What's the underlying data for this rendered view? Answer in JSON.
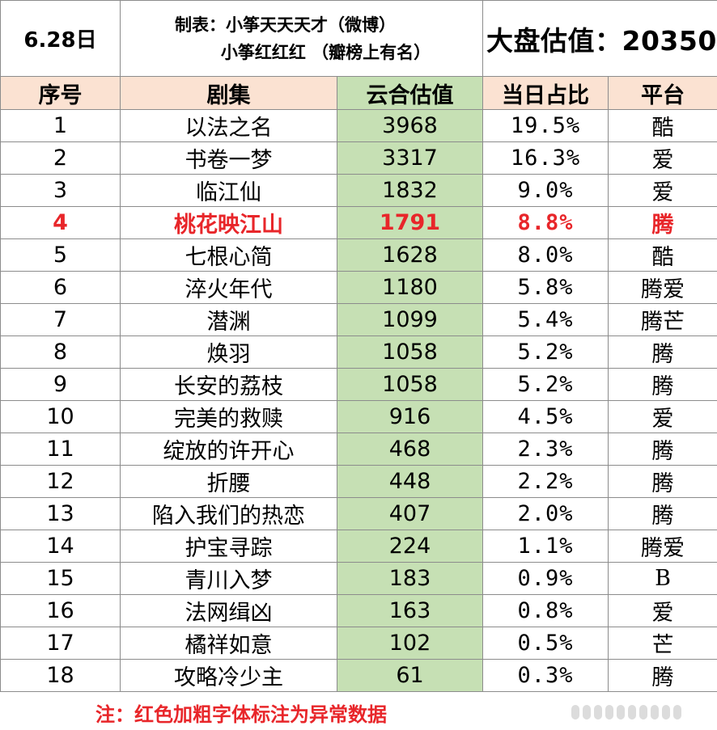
{
  "header": {
    "date": "6.28日",
    "credit_line1": "制表：小筝天天天才（微博）",
    "credit_line2": "小筝红红红 （瓣榜上有名）",
    "total": "大盘估值：20350"
  },
  "columns": [
    "序号",
    "剧集",
    "云合估值",
    "当日占比",
    "平台"
  ],
  "rows": [
    {
      "rank": "1",
      "title": "以法之名",
      "value": "3968",
      "share": "19.5%",
      "platform": "酷"
    },
    {
      "rank": "2",
      "title": "书卷一梦",
      "value": "3317",
      "share": "16.3%",
      "platform": "爱"
    },
    {
      "rank": "3",
      "title": "临江仙",
      "value": "1832",
      "share": "9.0%",
      "platform": "爱"
    },
    {
      "rank": "4",
      "title": "桃花映江山",
      "value": "1791",
      "share": "8.8%",
      "platform": "腾"
    },
    {
      "rank": "5",
      "title": "七根心简",
      "value": "1628",
      "share": "8.0%",
      "platform": "酷"
    },
    {
      "rank": "6",
      "title": "淬火年代",
      "value": "1180",
      "share": "5.8%",
      "platform": "腾爱"
    },
    {
      "rank": "7",
      "title": "潜渊",
      "value": "1099",
      "share": "5.4%",
      "platform": "腾芒"
    },
    {
      "rank": "8",
      "title": "焕羽",
      "value": "1058",
      "share": "5.2%",
      "platform": "腾"
    },
    {
      "rank": "9",
      "title": "长安的荔枝",
      "value": "1058",
      "share": "5.2%",
      "platform": "腾"
    },
    {
      "rank": "10",
      "title": "完美的救赎",
      "value": "916",
      "share": "4.5%",
      "platform": "爱"
    },
    {
      "rank": "11",
      "title": "绽放的许开心",
      "value": "468",
      "share": "2.3%",
      "platform": "腾"
    },
    {
      "rank": "12",
      "title": "折腰",
      "value": "448",
      "share": "2.2%",
      "platform": "腾"
    },
    {
      "rank": "13",
      "title": "陷入我们的热恋",
      "value": "407",
      "share": "2.0%",
      "platform": "腾"
    },
    {
      "rank": "14",
      "title": "护宝寻踪",
      "value": "224",
      "share": "1.1%",
      "platform": "腾爱"
    },
    {
      "rank": "15",
      "title": "青川入梦",
      "value": "183",
      "share": "0.9%",
      "platform": "B"
    },
    {
      "rank": "16",
      "title": "法网缉凶",
      "value": "163",
      "share": "0.8%",
      "platform": "爱"
    },
    {
      "rank": "17",
      "title": "橘祥如意",
      "value": "102",
      "share": "0.5%",
      "platform": "芒"
    },
    {
      "rank": "18",
      "title": "攻略冷少主",
      "value": "61",
      "share": "0.3%",
      "platform": "腾"
    }
  ],
  "footer": {
    "note": "注：红色加粗字体标注为异常数据"
  },
  "colors": {
    "header_bg": "#fbe2d2",
    "value_bg": "#c6e0b4",
    "anomaly_text": "#e8262a",
    "grid": "#8c8c8c"
  }
}
